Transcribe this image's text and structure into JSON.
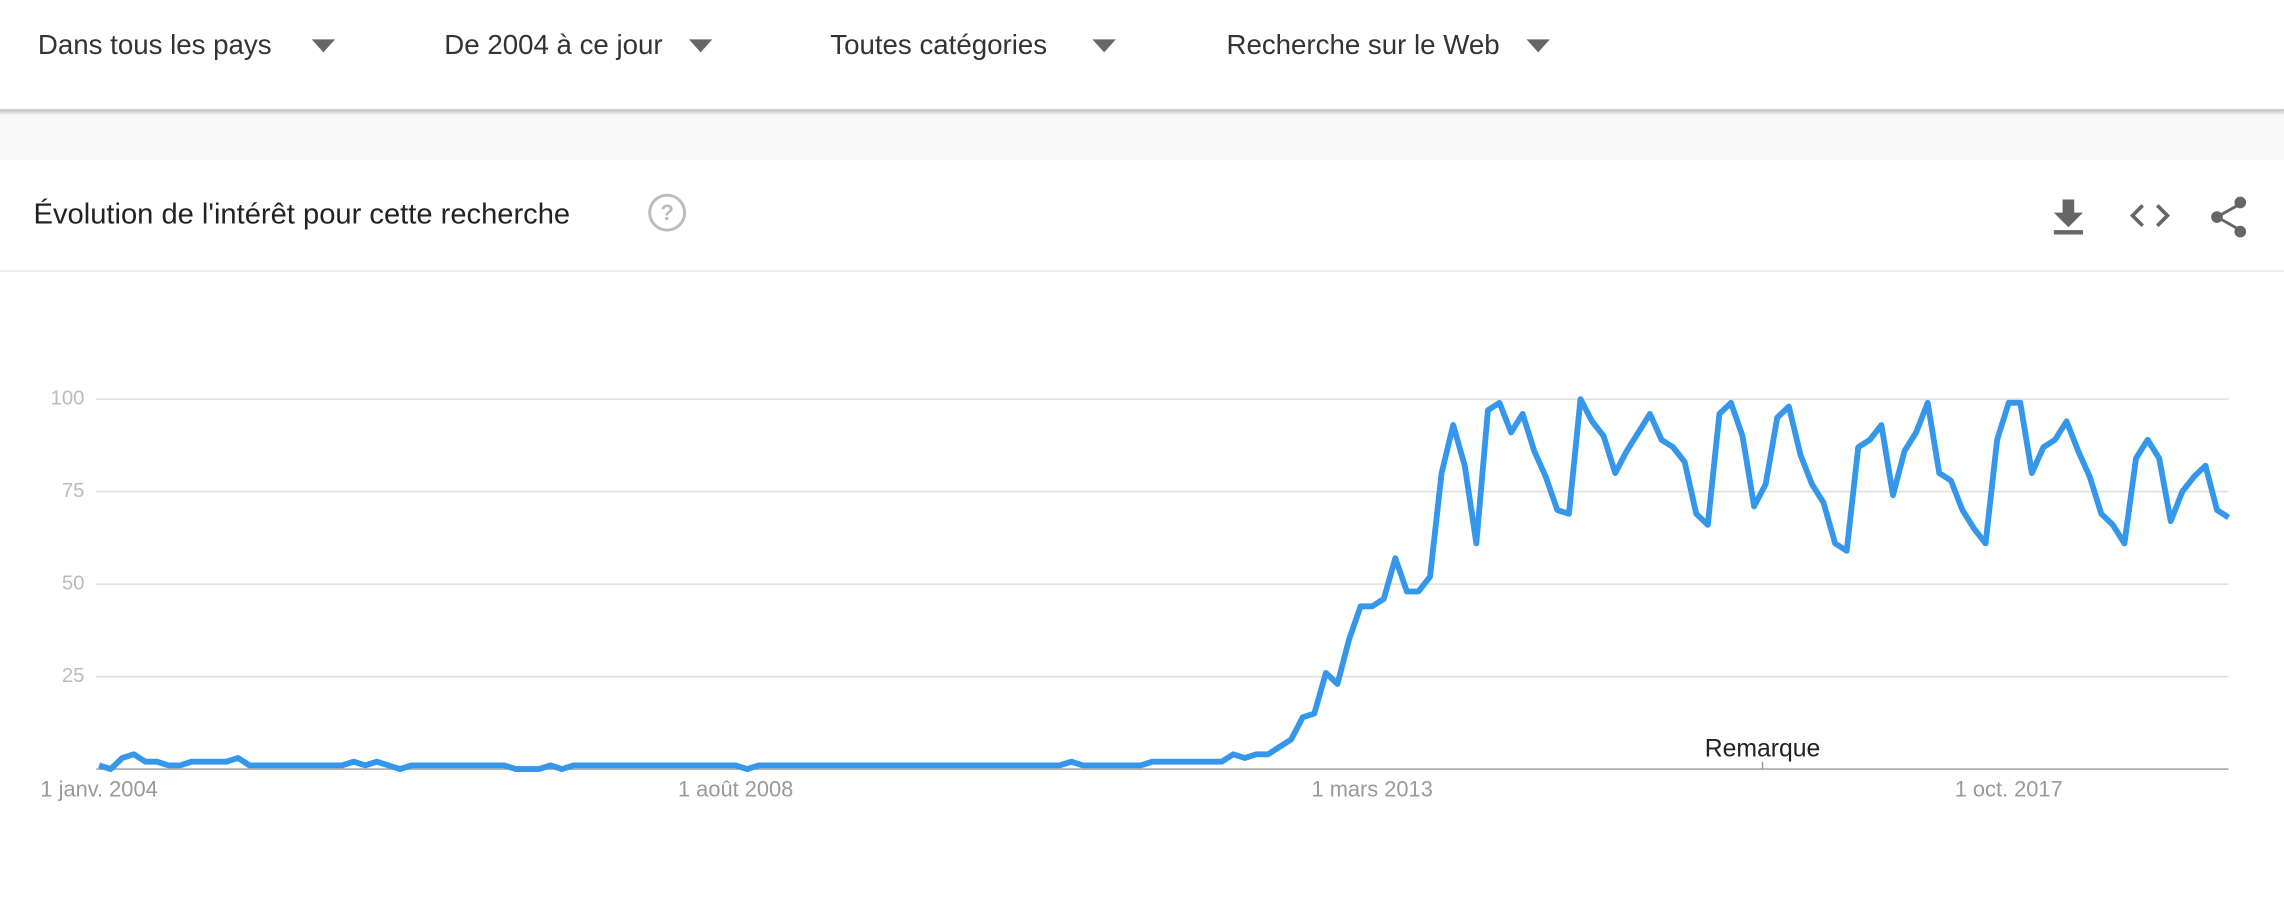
{
  "filters": [
    "Dans tous les pays",
    "De 2004 à ce jour",
    "Toutes catégories",
    "Recherche sur le Web"
  ],
  "panel": {
    "title": "Évolution de l'intérêt pour cette recherche"
  },
  "chart_data": {
    "type": "line",
    "categories": [
      "1 janv. 2004",
      null,
      null,
      null,
      null,
      null,
      null,
      null,
      null,
      null,
      null,
      null,
      null,
      null,
      null,
      null,
      null,
      null,
      null,
      null,
      null,
      null,
      null,
      null,
      null,
      null,
      null,
      null,
      null,
      null,
      null,
      null,
      null,
      null,
      null,
      null,
      null,
      null,
      null,
      null,
      null,
      null,
      null,
      null,
      null,
      null,
      null,
      null,
      null,
      null,
      null,
      null,
      null,
      null,
      null,
      "1 août 2008",
      null,
      null,
      null,
      null,
      null,
      null,
      null,
      null,
      null,
      null,
      null,
      null,
      null,
      null,
      null,
      null,
      null,
      null,
      null,
      null,
      null,
      null,
      null,
      null,
      null,
      null,
      null,
      null,
      null,
      null,
      null,
      null,
      null,
      null,
      null,
      null,
      null,
      null,
      null,
      null,
      null,
      null,
      null,
      null,
      null,
      null,
      null,
      null,
      null,
      null,
      null,
      null,
      null,
      null,
      "1 mars 2013",
      null,
      null,
      null,
      null,
      null,
      null,
      null,
      null,
      null,
      null,
      null,
      null,
      null,
      null,
      null,
      null,
      null,
      null,
      null,
      null,
      null,
      null,
      null,
      null,
      null,
      null,
      null,
      null,
      null,
      null,
      null,
      null,
      null,
      null,
      null,
      null,
      null,
      null,
      null,
      null,
      null,
      null,
      null,
      null,
      null,
      null,
      null,
      null,
      null,
      null,
      null,
      null,
      null,
      null,
      "1 oct. 2017",
      null,
      null,
      null,
      null,
      null,
      null,
      null,
      null,
      null,
      null,
      null,
      null,
      null,
      null,
      null,
      null,
      null,
      null,
      null
    ],
    "values": [
      1,
      0,
      3,
      4,
      2,
      2,
      1,
      1,
      2,
      2,
      2,
      2,
      3,
      1,
      1,
      1,
      1,
      1,
      1,
      1,
      1,
      1,
      2,
      1,
      2,
      1,
      0,
      1,
      1,
      1,
      1,
      1,
      1,
      1,
      1,
      1,
      0,
      0,
      0,
      1,
      0,
      1,
      1,
      1,
      1,
      1,
      1,
      1,
      1,
      1,
      1,
      1,
      1,
      1,
      1,
      1,
      0,
      1,
      1,
      1,
      1,
      1,
      1,
      1,
      1,
      1,
      1,
      1,
      1,
      1,
      1,
      1,
      1,
      1,
      1,
      1,
      1,
      1,
      1,
      1,
      1,
      1,
      1,
      1,
      2,
      1,
      1,
      1,
      1,
      1,
      1,
      2,
      2,
      2,
      2,
      2,
      2,
      2,
      4,
      3,
      4,
      4,
      6,
      8,
      14,
      15,
      26,
      23,
      35,
      44,
      44,
      46,
      57,
      48,
      48,
      52,
      80,
      93,
      82,
      61,
      97,
      99,
      91,
      96,
      86,
      79,
      70,
      69,
      100,
      94,
      90,
      80,
      86,
      91,
      96,
      89,
      87,
      83,
      69,
      66,
      96,
      99,
      90,
      71,
      77,
      95,
      98,
      85,
      77,
      72,
      61,
      59,
      87,
      89,
      93,
      74,
      86,
      91,
      99,
      80,
      78,
      70,
      65,
      61,
      89,
      99,
      99,
      80,
      87,
      89,
      94,
      86,
      79,
      69,
      66,
      61,
      84,
      89,
      84,
      67,
      75,
      79,
      82,
      70,
      68
    ],
    "color": "#3497eb",
    "ylim": [
      0,
      100
    ],
    "yticks": [
      25,
      50,
      75,
      100
    ],
    "grid": true,
    "annotation": "Remarque"
  }
}
